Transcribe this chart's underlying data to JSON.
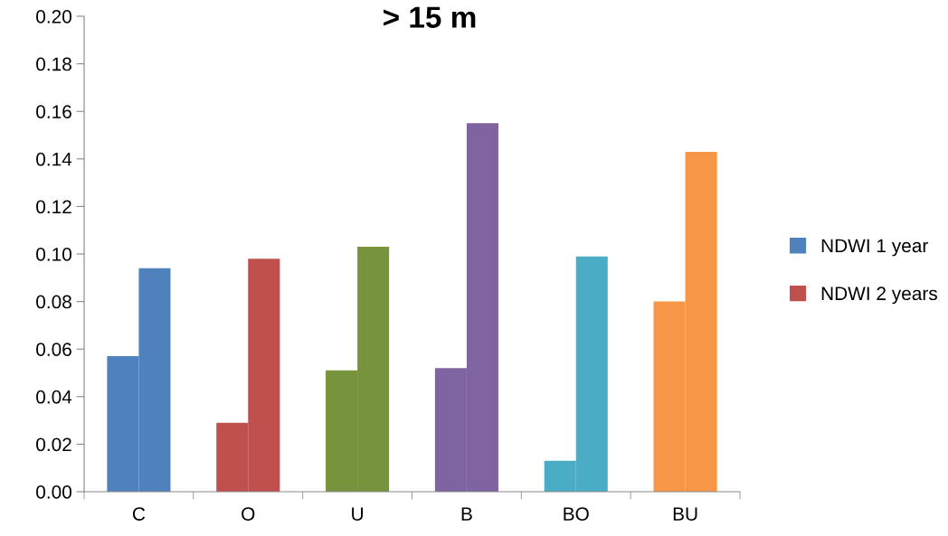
{
  "chart_data": {
    "type": "bar",
    "title": "> 15 m",
    "categories": [
      "C",
      "O",
      "U",
      "B",
      "BO",
      "BU"
    ],
    "series": [
      {
        "name": "NDWI 1 year",
        "color": "#4f81bd",
        "colors": [
          "#4f81bd",
          "#c0504d",
          "#77933c",
          "#8064a2",
          "#4bacc6",
          "#f79646"
        ],
        "values": [
          0.057,
          0.029,
          0.051,
          0.052,
          0.013,
          0.08
        ]
      },
      {
        "name": "NDWI 2 years",
        "color": "#c0504d",
        "colors": [
          "#4f81bd",
          "#c0504d",
          "#77933c",
          "#8064a2",
          "#4bacc6",
          "#f79646"
        ],
        "values": [
          0.094,
          0.098,
          0.103,
          0.155,
          0.099,
          0.143
        ]
      }
    ],
    "ylim": [
      0,
      0.2
    ],
    "yticks": [
      {
        "value": 0,
        "label": "0.00"
      },
      {
        "value": 0.02,
        "label": "0.02"
      },
      {
        "value": 0.04,
        "label": "0.04"
      },
      {
        "value": 0.06,
        "label": "0.06"
      },
      {
        "value": 0.08,
        "label": "0.08"
      },
      {
        "value": 0.1,
        "label": "0.10"
      },
      {
        "value": 0.12,
        "label": "0.12"
      },
      {
        "value": 0.14,
        "label": "0.14"
      },
      {
        "value": 0.16,
        "label": "0.16"
      },
      {
        "value": 0.18,
        "label": "0.18"
      },
      {
        "value": 0.2,
        "label": "0.20"
      }
    ],
    "grid": false,
    "legend": "right"
  }
}
